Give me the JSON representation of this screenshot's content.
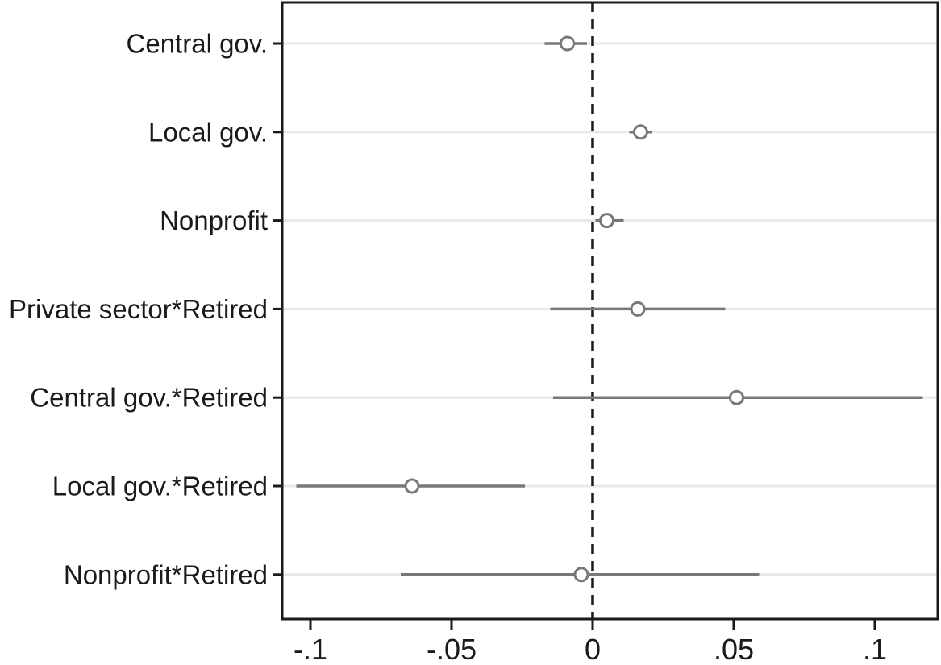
{
  "chart_data": {
    "type": "scatter",
    "subtype": "coefficient-plot-with-ci",
    "title": "",
    "xlabel": "",
    "ylabel": "",
    "legend": "none",
    "grid": true,
    "categories": [
      "Central gov.",
      "Local gov.",
      "Nonprofit",
      "Private sector*Retired",
      "Central gov.*Retired",
      "Local gov.*Retired",
      "Nonprofit*Retired"
    ],
    "points": [
      {
        "label": "Central gov.",
        "estimate": -0.009,
        "ci_low": -0.017,
        "ci_high": -0.002
      },
      {
        "label": "Local gov.",
        "estimate": 0.017,
        "ci_low": 0.013,
        "ci_high": 0.021
      },
      {
        "label": "Nonprofit",
        "estimate": 0.005,
        "ci_low": 0.001,
        "ci_high": 0.011
      },
      {
        "label": "Private sector*Retired",
        "estimate": 0.016,
        "ci_low": -0.015,
        "ci_high": 0.047
      },
      {
        "label": "Central gov.*Retired",
        "estimate": 0.051,
        "ci_low": -0.014,
        "ci_high": 0.117
      },
      {
        "label": "Local gov.*Retired",
        "estimate": -0.064,
        "ci_low": -0.105,
        "ci_high": -0.024
      },
      {
        "label": "Nonprofit*Retired",
        "estimate": -0.004,
        "ci_low": -0.068,
        "ci_high": 0.059
      }
    ],
    "x_axis": {
      "tick_labels": [
        "-.1",
        "-.05",
        "0",
        ".05",
        ".1"
      ],
      "tick_values": [
        -0.1,
        -0.05,
        0,
        0.05,
        0.1
      ],
      "min": -0.11,
      "max": 0.1223
    },
    "reference_line": {
      "value": 0,
      "style": "dashed"
    },
    "marker": {
      "shape": "hollow-circle"
    },
    "colors": {
      "ci_line": "#787878",
      "marker_stroke": "#787878",
      "marker_fill": "#ffffff",
      "gridline": "#e8e8e8",
      "axis": "#1a1a1a",
      "reference_line": "#1a1a1a",
      "text": "#1a1a1a",
      "background": "#ffffff"
    }
  }
}
